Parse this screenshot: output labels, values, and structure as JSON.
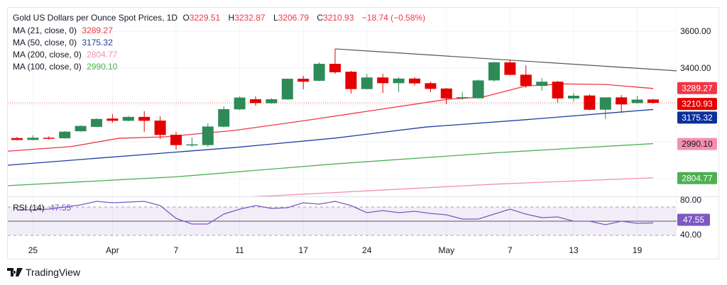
{
  "header": {
    "title": "Gold US Dollars per Ounce Spot Prices, 1D",
    "open_label": "O",
    "open": "3229.51",
    "high_label": "H",
    "high": "3232.87",
    "low_label": "L",
    "low": "3206.79",
    "close_label": "C",
    "close": "3210.93",
    "change": "−18.74 (−0.58%)"
  },
  "indicators": [
    {
      "label": "MA (21, close, 0)",
      "value": "3289.27",
      "color": "#f23645"
    },
    {
      "label": "MA (50, close, 0)",
      "value": "3175.32",
      "color": "#1e3ea0"
    },
    {
      "label": "MA (200, close, 0)",
      "value": "2804.77",
      "color": "#f48fb1"
    },
    {
      "label": "MA (100, close, 0)",
      "value": "2990.10",
      "color": "#4caf50"
    }
  ],
  "rsi": {
    "label": "RSI (14)",
    "value": "47.55",
    "color": "#7e57c2"
  },
  "branding": "TradingView",
  "chart_data": {
    "type": "candlestick",
    "title": "Gold US Dollars per Ounce Spot Prices, 1D",
    "price_axis": {
      "ticks": [
        "3600.00",
        "3400.00"
      ],
      "tick_values": [
        3600,
        3400
      ],
      "range": [
        2700,
        3600
      ],
      "grid_values": [
        3600,
        3400,
        3200,
        3000,
        2800
      ]
    },
    "rsi_axis": {
      "ticks": [
        "80.00",
        "40.00"
      ],
      "tick_values": [
        80,
        40
      ],
      "band": [
        30,
        70
      ],
      "midline": 50
    },
    "x_ticks": [
      {
        "label": "25",
        "index": 1
      },
      {
        "label": "Apr",
        "index": 6
      },
      {
        "label": "7",
        "index": 10
      },
      {
        "label": "11",
        "index": 14
      },
      {
        "label": "17",
        "index": 18
      },
      {
        "label": "24",
        "index": 22
      },
      {
        "label": "May",
        "index": 27
      },
      {
        "label": "7",
        "index": 31
      },
      {
        "label": "13",
        "index": 35
      },
      {
        "label": "19",
        "index": 39
      }
    ],
    "candles_ohlc": [
      [
        3020,
        3027,
        3008,
        3010
      ],
      [
        3010,
        3035,
        3008,
        3022
      ],
      [
        3022,
        3030,
        3012,
        3018
      ],
      [
        3019,
        3058,
        3017,
        3055
      ],
      [
        3057,
        3088,
        3055,
        3086
      ],
      [
        3081,
        3127,
        3080,
        3124
      ],
      [
        3126,
        3150,
        3104,
        3114
      ],
      [
        3114,
        3140,
        3110,
        3135
      ],
      [
        3135,
        3166,
        3054,
        3114
      ],
      [
        3115,
        3138,
        3015,
        3037
      ],
      [
        3038,
        3054,
        2958,
        2982
      ],
      [
        2984,
        3023,
        2973,
        2986
      ],
      [
        2982,
        3100,
        2973,
        3083
      ],
      [
        3082,
        3192,
        3078,
        3177
      ],
      [
        3176,
        3246,
        3172,
        3240
      ],
      [
        3231,
        3246,
        3196,
        3210
      ],
      [
        3209,
        3236,
        3207,
        3231
      ],
      [
        3230,
        3343,
        3228,
        3342
      ],
      [
        3342,
        3358,
        3285,
        3326
      ],
      [
        3331,
        3431,
        3329,
        3423
      ],
      [
        3423,
        3504,
        3369,
        3377
      ],
      [
        3380,
        3385,
        3262,
        3286
      ],
      [
        3286,
        3369,
        3284,
        3349
      ],
      [
        3349,
        3369,
        3265,
        3318
      ],
      [
        3318,
        3350,
        3269,
        3343
      ],
      [
        3343,
        3350,
        3306,
        3317
      ],
      [
        3318,
        3327,
        3269,
        3287
      ],
      [
        3289,
        3292,
        3204,
        3235
      ],
      [
        3236,
        3269,
        3227,
        3242
      ],
      [
        3236,
        3338,
        3234,
        3333
      ],
      [
        3333,
        3435,
        3327,
        3431
      ],
      [
        3431,
        3446,
        3360,
        3363
      ],
      [
        3364,
        3415,
        3292,
        3303
      ],
      [
        3303,
        3346,
        3277,
        3326
      ],
      [
        3326,
        3331,
        3212,
        3235
      ],
      [
        3235,
        3265,
        3219,
        3250
      ],
      [
        3251,
        3258,
        3170,
        3174
      ],
      [
        3174,
        3242,
        3123,
        3241
      ],
      [
        3241,
        3254,
        3158,
        3203
      ],
      [
        3210,
        3250,
        3207,
        3229
      ],
      [
        3229.51,
        3232.87,
        3206.79,
        3210.93
      ]
    ],
    "last_price": 3210.93,
    "moving_averages": [
      {
        "name": "MA 21",
        "value": "3289.27",
        "color": "#f23645",
        "points": [
          [
            -0.6,
            2949
          ],
          [
            3.4,
            2974
          ],
          [
            6.4,
            3019
          ],
          [
            9.3,
            3027
          ],
          [
            13.7,
            3062
          ],
          [
            18.1,
            3115
          ],
          [
            27.1,
            3231
          ],
          [
            29.3,
            3243
          ],
          [
            32,
            3303
          ],
          [
            34.3,
            3314
          ],
          [
            37,
            3311
          ],
          [
            40,
            3289.27
          ]
        ]
      },
      {
        "name": "MA 50",
        "value": "3175.32",
        "color": "#1e3ea0",
        "points": [
          [
            -0.6,
            2873
          ],
          [
            13.7,
            2969
          ],
          [
            20,
            3020
          ],
          [
            25.7,
            3080
          ],
          [
            32,
            3120
          ],
          [
            40,
            3175.32
          ]
        ]
      },
      {
        "name": "MA 100",
        "value": "2990.10",
        "color": "#4caf50",
        "points": [
          [
            -0.6,
            2762
          ],
          [
            10,
            2810
          ],
          [
            20,
            2880
          ],
          [
            30,
            2940
          ],
          [
            40,
            2990.1
          ]
        ]
      },
      {
        "name": "MA 200",
        "value": "2804.77",
        "color": "#f48fb1",
        "points": [
          [
            -0.6,
            2640
          ],
          [
            15.4,
            2704
          ],
          [
            30,
            2770
          ],
          [
            40,
            2804.77
          ]
        ]
      }
    ],
    "trendline": [
      [
        20,
        3504
      ],
      [
        41.5,
        3385
      ]
    ],
    "rsi_values": [
      66,
      66,
      67,
      70,
      73,
      78,
      76,
      77,
      78,
      72,
      54,
      46,
      46,
      60,
      67,
      72,
      68,
      69,
      76,
      74,
      78,
      72,
      62,
      65,
      62,
      64,
      61,
      59,
      53,
      53,
      60,
      67,
      60,
      55,
      56,
      50,
      50,
      45,
      50,
      47,
      47.55
    ]
  }
}
